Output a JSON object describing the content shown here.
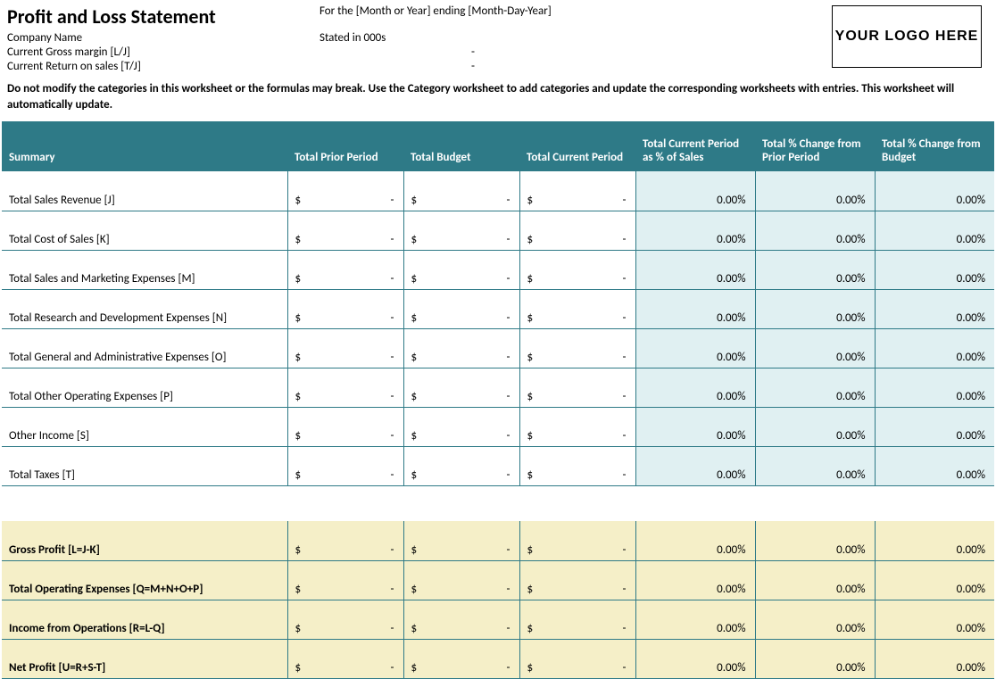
{
  "header": {
    "title": "Profit and Loss Statement",
    "period_line": "For the [Month or Year] ending [Month-Day-Year]",
    "company_label": "Company Name",
    "stated_in": "Stated in 000s",
    "gross_margin_label": "Current Gross margin  [L/J]",
    "gross_margin_value": "-",
    "return_on_sales_label": "Current Return on sales  [T/J]",
    "return_on_sales_value": "-",
    "logo_text": "YOUR LOGO HERE"
  },
  "warning": "Do not modify the categories in this worksheet or the formulas may break. Use the Category worksheet to add categories and update the corresponding worksheets with entries. This worksheet will automatically update.",
  "columns": {
    "summary": "Summary",
    "prior": "Total Prior Period",
    "budget": "Total Budget",
    "current": "Total Current Period",
    "pct_sales": "Total Current Period as % of Sales",
    "pct_prior": "Total % Change from Prior Period",
    "pct_budget": "Total % Change from Budget"
  },
  "currency_symbol": "$",
  "blank_value": "-",
  "summary_rows": [
    {
      "label": "Total Sales Revenue  [J]",
      "pct_sales": "0.00%",
      "pct_prior": "0.00%",
      "pct_budget": "0.00%"
    },
    {
      "label": "Total Cost of Sales  [K]",
      "pct_sales": "0.00%",
      "pct_prior": "0.00%",
      "pct_budget": "0.00%"
    },
    {
      "label": "Total Sales and Marketing Expenses  [M]",
      "pct_sales": "0.00%",
      "pct_prior": "0.00%",
      "pct_budget": "0.00%"
    },
    {
      "label": "Total Research and Development Expenses  [N]",
      "pct_sales": "0.00%",
      "pct_prior": "0.00%",
      "pct_budget": "0.00%"
    },
    {
      "label": "Total General and Administrative Expenses  [O]",
      "pct_sales": "0.00%",
      "pct_prior": "0.00%",
      "pct_budget": "0.00%"
    },
    {
      "label": "Total Other Operating Expenses [P]",
      "pct_sales": "0.00%",
      "pct_prior": "0.00%",
      "pct_budget": "0.00%"
    },
    {
      "label": "Other Income  [S]",
      "pct_sales": "0.00%",
      "pct_prior": "0.00%",
      "pct_budget": "0.00%"
    },
    {
      "label": "Total Taxes  [T]",
      "pct_sales": "0.00%",
      "pct_prior": "0.00%",
      "pct_budget": "0.00%"
    }
  ],
  "calc_rows": [
    {
      "label": "Gross Profit  [L=J-K]",
      "pct_sales": "0.00%",
      "pct_prior": "0.00%",
      "pct_budget": "0.00%"
    },
    {
      "label": "Total Operating Expenses  [Q=M+N+O+P]",
      "pct_sales": "0.00%",
      "pct_prior": "0.00%",
      "pct_budget": "0.00%"
    },
    {
      "label": "Income from Operations  [R=L-Q]",
      "pct_sales": "0.00%",
      "pct_prior": "0.00%",
      "pct_budget": "0.00%"
    },
    {
      "label": "Net Profit  [U=R+S-T]",
      "pct_sales": "0.00%",
      "pct_prior": "0.00%",
      "pct_budget": "0.00%"
    }
  ],
  "colors": {
    "header_bg": "#2e7a87",
    "header_text": "#ffffff",
    "cell_border": "#2e7a87",
    "pct_bg": "#e0f0f2",
    "calc_bg": "#f5efc8"
  }
}
